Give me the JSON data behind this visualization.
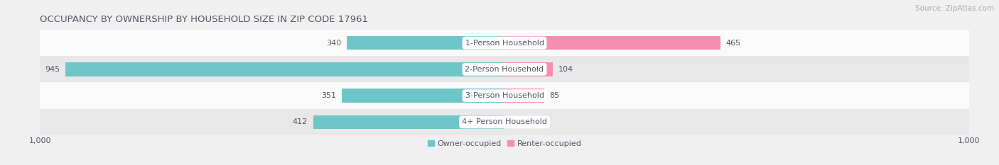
{
  "title": "OCCUPANCY BY OWNERSHIP BY HOUSEHOLD SIZE IN ZIP CODE 17961",
  "source": "Source: ZipAtlas.com",
  "categories": [
    "1-Person Household",
    "2-Person Household",
    "3-Person Household",
    "4+ Person Household"
  ],
  "owner_occupied": [
    340,
    945,
    351,
    412
  ],
  "renter_occupied": [
    465,
    104,
    85,
    0
  ],
  "owner_color": "#6ec6c8",
  "renter_color": "#f48fb1",
  "bar_height": 0.52,
  "xlim": [
    -1000,
    1000
  ],
  "background_color": "#f0f0f0",
  "row_bg_light": "#fafafa",
  "row_bg_dark": "#e8e8e8",
  "title_fontsize": 9.5,
  "source_fontsize": 7.5,
  "label_fontsize": 8,
  "tick_fontsize": 8,
  "legend_fontsize": 8,
  "text_color": "#555566"
}
